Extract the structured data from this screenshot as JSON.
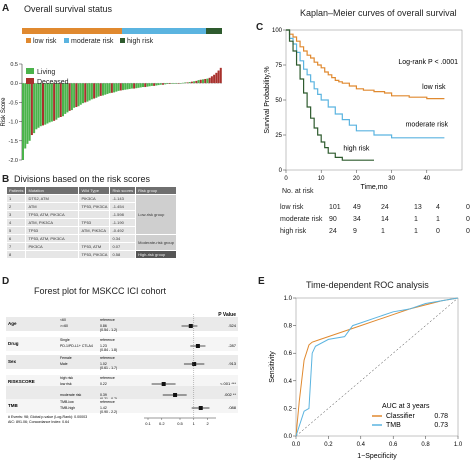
{
  "panelA": {
    "label": "A",
    "title": "Overall survival status",
    "risk_groups": [
      {
        "label": "low risk",
        "color": "#e0892f"
      },
      {
        "label": "moderate risk",
        "color": "#5bb4e0"
      },
      {
        "label": "high risk",
        "color": "#2e5b2e"
      }
    ],
    "status_legend": [
      {
        "label": "Living",
        "color": "#4bb34b"
      },
      {
        "label": "Deceased",
        "color": "#a8302c"
      }
    ],
    "ylabel": "Risk Score",
    "yticks": [
      "0.5",
      "0.0",
      "-0.5",
      "-1.0",
      "-1.5",
      "-2.0"
    ]
  },
  "panelB": {
    "label": "B",
    "title": "Divisions based on the risk scores",
    "headers": [
      "Patients",
      "Mutation",
      "Wild Type",
      "Risk scores",
      "Risk group"
    ],
    "rows": [
      [
        "1",
        "DTS2, ATM",
        "PIK3CA",
        "-1.143"
      ],
      [
        "2",
        "ATM",
        "TP53, PIK3CA",
        "-1.454"
      ],
      [
        "3",
        "TP53, ATM, PIK3CA",
        "",
        "-1.598"
      ],
      [
        "4",
        "ATM, PIK3CA",
        "TP53",
        "-1.190"
      ],
      [
        "5",
        "TP53",
        "ATM, PIK3CA",
        "-0.492"
      ],
      [
        "6",
        "TP53, ATM, PIK3CA",
        "",
        "0.34"
      ],
      [
        "7",
        "PIK3CA",
        "TP53, ATM",
        "0.07"
      ],
      [
        "8",
        "",
        "TP53, PIK3CA",
        "0.58"
      ]
    ],
    "groups": [
      "Low-risk group",
      "Moderate-risk group",
      "High-risk group"
    ]
  },
  "panelC": {
    "label": "C",
    "title": "Kaplan–Meier curves of overall survival"
  },
  "panelD": {
    "label": "D",
    "title": "Forest plot  for MSKCC ICI cohort",
    "pvalue_header": "P Value",
    "rows": [
      {
        "var": "Age",
        "lvl1": "<60",
        "lvl2": ">=60",
        "ref": "reference",
        "hr": "0.86",
        "ci": "(0.54 - 1.2)",
        "p": ".524"
      },
      {
        "var": "Drug",
        "lvl1": "Single",
        "lvl2": "PD-1/PD-L1+ CTLA4",
        "ref": "reference",
        "hr": "1.23",
        "ci": "(0.84 - 1.8)",
        "p": ".287"
      },
      {
        "var": "Sex",
        "lvl1": "Female",
        "lvl2": "Male",
        "ref": "reference",
        "hr": "1.02",
        "ci": "(0.61 - 1.7)",
        "p": ".913"
      },
      {
        "var": "RISKSCORE",
        "lvl1": "high risk",
        "lvl2": "low risk",
        "ref": "reference",
        "hr": "0.22",
        "ci": "(0.12 - 0.4)",
        "p": "<.001 ***"
      },
      {
        "var": "",
        "lvl1": "",
        "lvl2": "moderate risk",
        "ref": "",
        "hr": "0.39",
        "ci": "(0.21 - 0.7)",
        "p": ".002 **"
      },
      {
        "var": "TMB",
        "lvl1": "TMB-low",
        "lvl2": "TMB-high",
        "ref": "reference",
        "hr": "1.42",
        "ci": "(0.90 - 2.2)",
        "p": ".088"
      }
    ],
    "footnote1": "# Events: 98; Global p-value (Log-Rank): 0.00003",
    "footnote2": "AIC: 891.06; Concordance Index: 0.64",
    "xticks": [
      "0.1",
      "0.2",
      "0.5",
      "1",
      "2"
    ]
  },
  "panelE": {
    "label": "E",
    "title": "Time-dependent ROC analysis"
  },
  "chart_data": [
    {
      "type": "bar",
      "id": "risk_score_waterfall",
      "title": "Overall survival status",
      "ylabel": "Risk Score",
      "ylim": [
        -2.0,
        0.5
      ],
      "series": [
        {
          "name": "Living",
          "values": [
            -2.0,
            -1.7,
            -1.58,
            -1.5,
            -1.3,
            -1.2,
            -1.16,
            -1.12,
            -1.08,
            -1.05,
            -1.02,
            -1.0,
            -0.95,
            -0.9,
            -0.86,
            -0.8,
            -0.76,
            -0.7,
            -0.64,
            -0.6,
            -0.56,
            -0.52,
            -0.48,
            -0.45,
            -0.42,
            -0.38,
            -0.35,
            -0.32,
            -0.3,
            -0.28,
            -0.26,
            -0.24,
            -0.22,
            -0.2,
            -0.18,
            -0.17,
            -0.16,
            -0.15,
            -0.14,
            -0.13,
            -0.12,
            -0.11,
            -0.1,
            -0.09,
            -0.08,
            -0.07,
            -0.06,
            -0.05,
            -0.04,
            -0.03,
            -0.02,
            -0.01,
            -0.005,
            0.0,
            0.005,
            0.01,
            0.02,
            0.03,
            0.05,
            0.08,
            0.1,
            0.12
          ]
        },
        {
          "name": "Deceased",
          "values": [
            -1.35,
            -1.1,
            -0.98,
            -0.88,
            -0.72,
            -0.62,
            -0.5,
            -0.4,
            -0.33,
            -0.25,
            -0.19,
            -0.14,
            -0.1,
            -0.07,
            -0.04,
            -0.02,
            0.0,
            0.02,
            0.04,
            0.06,
            0.09,
            0.11,
            0.14,
            0.18,
            0.22,
            0.27,
            0.33,
            0.4
          ]
        }
      ]
    },
    {
      "type": "line",
      "id": "kaplan_meier",
      "title": "Kaplan–Meier curves of overall survival",
      "xlabel": "Time,mo",
      "ylabel": "Survival Probability,%",
      "xlim": [
        0,
        50
      ],
      "ylim": [
        0,
        100
      ],
      "xticks": [
        0,
        10,
        20,
        30,
        40
      ],
      "yticks": [
        0,
        25,
        50,
        75,
        100
      ],
      "annotation": "Log-rank P < .0001",
      "series": [
        {
          "name": "low risk",
          "color": "#e0892f",
          "x": [
            0,
            1,
            2,
            3,
            4,
            5,
            6,
            7,
            8,
            9,
            10,
            11,
            12,
            13,
            14,
            15,
            16,
            18,
            20,
            22,
            25,
            28,
            30,
            35,
            40,
            45
          ],
          "y": [
            100,
            97,
            95,
            92,
            88,
            85,
            82,
            80,
            77,
            75,
            73,
            70,
            68,
            66,
            64,
            63,
            62,
            60,
            58,
            57,
            56,
            55,
            53,
            52,
            51,
            51
          ]
        },
        {
          "name": "moderate risk",
          "color": "#5bb4e0",
          "x": [
            0,
            1,
            2,
            3,
            4,
            5,
            6,
            7,
            8,
            9,
            10,
            12,
            14,
            16,
            18,
            20,
            25,
            30,
            35,
            40,
            45
          ],
          "y": [
            100,
            94,
            90,
            84,
            78,
            72,
            68,
            63,
            58,
            54,
            50,
            45,
            40,
            36,
            32,
            28,
            25,
            23,
            23,
            23,
            23
          ]
        },
        {
          "name": "high risk",
          "color": "#2e5b2e",
          "x": [
            0,
            1,
            2,
            3,
            4,
            5,
            6,
            7,
            8,
            9,
            10,
            11,
            12,
            14,
            16,
            18,
            20,
            25
          ],
          "y": [
            100,
            92,
            85,
            75,
            65,
            55,
            45,
            37,
            30,
            25,
            20,
            16,
            12,
            9,
            7,
            7,
            7,
            7
          ]
        }
      ],
      "risk_table": {
        "title": "No. at risk",
        "times": [
          "0",
          "10",
          "20",
          "30",
          "40",
          "50"
        ],
        "rows": [
          {
            "name": "low risk",
            "counts": [
              "101",
              "49",
              "24",
              "13",
              "4",
              "0"
            ]
          },
          {
            "name": "moderate risk",
            "counts": [
              "90",
              "34",
              "14",
              "1",
              "1",
              "0"
            ]
          },
          {
            "name": "high risk",
            "counts": [
              "24",
              "9",
              "1",
              "1",
              "0",
              "0"
            ]
          }
        ]
      }
    },
    {
      "type": "scatter",
      "id": "forest_plot",
      "title": "Forest plot  for MSKCC ICI cohort",
      "xscale": "log",
      "xlim": [
        0.1,
        2.5
      ],
      "points": [
        {
          "label": "Age >=60",
          "hr": 0.86,
          "lo": 0.54,
          "hi": 1.2
        },
        {
          "label": "PD-1/PD-L1+ CTLA4",
          "hr": 1.23,
          "lo": 0.84,
          "hi": 1.8
        },
        {
          "label": "Male",
          "hr": 1.02,
          "lo": 0.61,
          "hi": 1.7
        },
        {
          "label": "low risk",
          "hr": 0.22,
          "lo": 0.12,
          "hi": 0.4
        },
        {
          "label": "moderate risk",
          "hr": 0.39,
          "lo": 0.21,
          "hi": 0.7
        },
        {
          "label": "TMB-high",
          "hr": 1.42,
          "lo": 0.9,
          "hi": 2.2
        }
      ]
    },
    {
      "type": "line",
      "id": "roc",
      "title": "Time-dependent ROC analysis",
      "xlabel": "1−Specificity",
      "ylabel": "Sensitivity",
      "xlim": [
        0,
        1
      ],
      "ylim": [
        0,
        1
      ],
      "xticks": [
        0.0,
        0.2,
        0.4,
        0.6,
        0.8,
        1.0
      ],
      "yticks": [
        0.0,
        0.2,
        0.4,
        0.6,
        0.8,
        1.0
      ],
      "legend_title": "AUC at 3 years",
      "series": [
        {
          "name": "Classifier",
          "auc": "0.78",
          "color": "#e0892f",
          "x": [
            0,
            0.02,
            0.05,
            0.08,
            0.1,
            0.15,
            0.2,
            0.3,
            0.4,
            0.5,
            0.6,
            0.7,
            0.8,
            0.9,
            1.0
          ],
          "y": [
            0,
            0.25,
            0.55,
            0.66,
            0.68,
            0.7,
            0.72,
            0.76,
            0.8,
            0.84,
            0.88,
            0.92,
            0.95,
            0.98,
            1.0
          ]
        },
        {
          "name": "TMB",
          "auc": "0.73",
          "color": "#5bb4e0",
          "x": [
            0,
            0.05,
            0.08,
            0.1,
            0.12,
            0.2,
            0.3,
            0.35,
            0.4,
            0.5,
            0.6,
            0.7,
            0.8,
            0.9,
            1.0
          ],
          "y": [
            0,
            0.18,
            0.2,
            0.6,
            0.65,
            0.7,
            0.72,
            0.8,
            0.82,
            0.86,
            0.9,
            0.92,
            0.96,
            0.98,
            1.0
          ]
        }
      ]
    }
  ]
}
